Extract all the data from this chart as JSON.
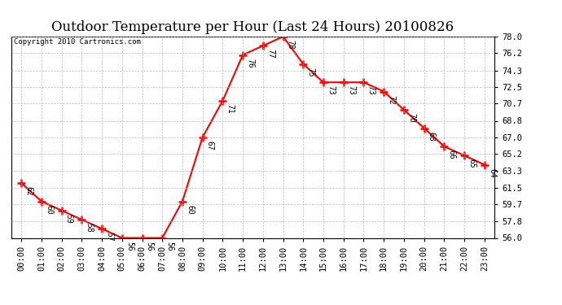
{
  "title": "Outdoor Temperature per Hour (Last 24 Hours) 20100826",
  "copyright_text": "Copyright 2010 Cartronics.com",
  "hours": [
    "00:00",
    "01:00",
    "02:00",
    "03:00",
    "04:00",
    "05:00",
    "06:00",
    "07:00",
    "08:00",
    "09:00",
    "10:00",
    "11:00",
    "12:00",
    "13:00",
    "14:00",
    "15:00",
    "16:00",
    "17:00",
    "18:00",
    "19:00",
    "20:00",
    "21:00",
    "22:00",
    "23:00"
  ],
  "temps": [
    62,
    60,
    59,
    58,
    57,
    56,
    56,
    56,
    60,
    67,
    71,
    76,
    77,
    78,
    75,
    73,
    73,
    73,
    72,
    70,
    68,
    66,
    65,
    64
  ],
  "ylim_min": 56.0,
  "ylim_max": 78.0,
  "yticks": [
    56.0,
    57.8,
    59.7,
    61.5,
    63.3,
    65.2,
    67.0,
    68.8,
    70.7,
    72.5,
    74.3,
    76.2,
    78.0
  ],
  "line_color": "red",
  "marker_color": "red",
  "background_color": "white",
  "grid_color": "#aaaaaa",
  "title_fontsize": 12,
  "annot_fontsize": 7,
  "tick_fontsize": 7.5,
  "copyright_fontsize": 6.5
}
